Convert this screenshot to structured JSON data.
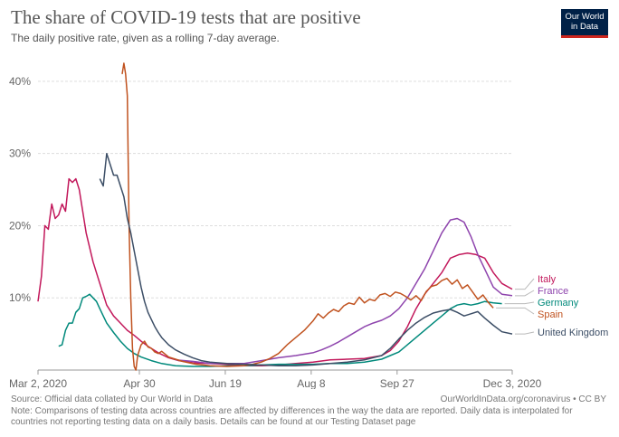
{
  "logo": {
    "line1": "Our World",
    "line2": "in Data"
  },
  "footer": {
    "source": "Source: Official data collated by Our World in Data",
    "url": "OurWorldInData.org/coronavirus • CC BY",
    "note_line1": "Note: Comparisons of testing data across countries are affected by differences in the way the data are reported. Daily data is interpolated for",
    "note_line2": "countries not reporting testing data on a daily basis. Details can be found at our Testing Dataset page"
  },
  "chart_data": {
    "type": "line",
    "title": "The share of COVID-19 tests that are positive",
    "subtitle": "The daily positive rate, given as a rolling 7-day average.",
    "xlabel": "",
    "ylabel": "",
    "x_unit": "days since Mar 2, 2020",
    "xlim": [
      0,
      276
    ],
    "ylim": [
      0,
      45
    ],
    "y_ticks": [
      {
        "value": 10,
        "label": "10%"
      },
      {
        "value": 20,
        "label": "20%"
      },
      {
        "value": 30,
        "label": "30%"
      },
      {
        "value": 40,
        "label": "40%"
      }
    ],
    "x_ticks": [
      {
        "value": 0,
        "label": "Mar 2, 2020"
      },
      {
        "value": 59,
        "label": "Apr 30"
      },
      {
        "value": 109,
        "label": "Jun 19"
      },
      {
        "value": 159,
        "label": "Aug 8"
      },
      {
        "value": 209,
        "label": "Sep 27"
      },
      {
        "value": 276,
        "label": "Dec 3, 2020"
      }
    ],
    "grid": true,
    "legend": "right",
    "series": [
      {
        "name": "Italy",
        "color": "#c2185b",
        "points": [
          [
            0,
            9.5
          ],
          [
            2,
            13
          ],
          [
            4,
            20
          ],
          [
            6,
            19.5
          ],
          [
            8,
            23
          ],
          [
            10,
            21
          ],
          [
            12,
            21.5
          ],
          [
            14,
            23
          ],
          [
            16,
            22
          ],
          [
            18,
            26.5
          ],
          [
            20,
            26
          ],
          [
            22,
            26.5
          ],
          [
            24,
            25
          ],
          [
            26,
            22
          ],
          [
            28,
            19
          ],
          [
            32,
            15
          ],
          [
            36,
            12
          ],
          [
            40,
            9
          ],
          [
            44,
            7.5
          ],
          [
            48,
            6.5
          ],
          [
            52,
            5.5
          ],
          [
            56,
            4.8
          ],
          [
            60,
            4
          ],
          [
            64,
            3.3
          ],
          [
            70,
            2.4
          ],
          [
            76,
            1.7
          ],
          [
            82,
            1.3
          ],
          [
            90,
            1
          ],
          [
            100,
            0.9
          ],
          [
            110,
            0.8
          ],
          [
            120,
            0.6
          ],
          [
            130,
            0.6
          ],
          [
            140,
            0.7
          ],
          [
            150,
            0.9
          ],
          [
            160,
            1.1
          ],
          [
            170,
            1.4
          ],
          [
            180,
            1.5
          ],
          [
            190,
            1.6
          ],
          [
            200,
            2
          ],
          [
            205,
            2.7
          ],
          [
            210,
            4
          ],
          [
            215,
            6
          ],
          [
            220,
            8.5
          ],
          [
            225,
            10.5
          ],
          [
            230,
            12
          ],
          [
            235,
            13.5
          ],
          [
            240,
            15.5
          ],
          [
            245,
            16
          ],
          [
            250,
            16.2
          ],
          [
            255,
            16
          ],
          [
            260,
            15.5
          ],
          [
            265,
            13.5
          ],
          [
            270,
            12
          ],
          [
            276,
            11.2
          ]
        ]
      },
      {
        "name": "France",
        "color": "#8e44ad",
        "points": [
          [
            80,
            1.4
          ],
          [
            90,
            1.2
          ],
          [
            100,
            0.9
          ],
          [
            110,
            0.9
          ],
          [
            120,
            0.9
          ],
          [
            130,
            1.3
          ],
          [
            140,
            1.7
          ],
          [
            150,
            2
          ],
          [
            160,
            2.4
          ],
          [
            165,
            2.8
          ],
          [
            170,
            3.3
          ],
          [
            175,
            3.9
          ],
          [
            180,
            4.6
          ],
          [
            185,
            5.3
          ],
          [
            190,
            6
          ],
          [
            195,
            6.5
          ],
          [
            200,
            6.9
          ],
          [
            205,
            7.5
          ],
          [
            210,
            8.5
          ],
          [
            215,
            10
          ],
          [
            220,
            12
          ],
          [
            225,
            14
          ],
          [
            230,
            16.5
          ],
          [
            235,
            19
          ],
          [
            240,
            20.8
          ],
          [
            244,
            21
          ],
          [
            248,
            20.5
          ],
          [
            252,
            18.5
          ],
          [
            256,
            16
          ],
          [
            260,
            14
          ],
          [
            265,
            11.5
          ],
          [
            270,
            10.5
          ],
          [
            276,
            10.3
          ]
        ]
      },
      {
        "name": "Germany",
        "color": "#00897b",
        "points": [
          [
            12,
            3.3
          ],
          [
            14,
            3.5
          ],
          [
            16,
            5.5
          ],
          [
            18,
            6.5
          ],
          [
            20,
            6.5
          ],
          [
            22,
            8
          ],
          [
            24,
            8.5
          ],
          [
            26,
            10
          ],
          [
            28,
            10.2
          ],
          [
            30,
            10.5
          ],
          [
            32,
            10
          ],
          [
            34,
            9.5
          ],
          [
            36,
            8.5
          ],
          [
            38,
            7.5
          ],
          [
            40,
            6.5
          ],
          [
            44,
            5.2
          ],
          [
            48,
            4
          ],
          [
            52,
            3
          ],
          [
            56,
            2.3
          ],
          [
            60,
            1.8
          ],
          [
            66,
            1.3
          ],
          [
            72,
            0.9
          ],
          [
            80,
            0.6
          ],
          [
            90,
            0.5
          ],
          [
            100,
            0.5
          ],
          [
            110,
            0.6
          ],
          [
            120,
            0.6
          ],
          [
            130,
            0.7
          ],
          [
            140,
            0.8
          ],
          [
            150,
            0.8
          ],
          [
            160,
            0.8
          ],
          [
            170,
            0.9
          ],
          [
            180,
            0.9
          ],
          [
            190,
            1.1
          ],
          [
            200,
            1.5
          ],
          [
            205,
            2
          ],
          [
            210,
            2.5
          ],
          [
            215,
            3.5
          ],
          [
            220,
            4.5
          ],
          [
            225,
            5.5
          ],
          [
            230,
            6.5
          ],
          [
            235,
            7.5
          ],
          [
            240,
            8.5
          ],
          [
            244,
            9
          ],
          [
            248,
            9.2
          ],
          [
            252,
            9
          ],
          [
            256,
            9.2
          ],
          [
            260,
            9.5
          ],
          [
            265,
            9.3
          ],
          [
            270,
            9.2
          ]
        ]
      },
      {
        "name": "Spain",
        "color": "#c0521f",
        "points": [
          [
            49,
            41
          ],
          [
            50,
            42.5
          ],
          [
            51,
            41
          ],
          [
            52,
            38
          ],
          [
            53,
            20
          ],
          [
            54,
            10
          ],
          [
            55,
            3
          ],
          [
            56,
            0.5
          ],
          [
            57,
            0
          ],
          [
            58,
            2
          ],
          [
            60,
            3.5
          ],
          [
            62,
            4
          ],
          [
            64,
            3.2
          ],
          [
            66,
            3
          ],
          [
            68,
            2.5
          ],
          [
            70,
            2.3
          ],
          [
            72,
            2.6
          ],
          [
            74,
            2.2
          ],
          [
            76,
            1.8
          ],
          [
            80,
            1.5
          ],
          [
            84,
            1.2
          ],
          [
            88,
            1
          ],
          [
            92,
            0.8
          ],
          [
            96,
            0.7
          ],
          [
            100,
            0.6
          ],
          [
            110,
            0.5
          ],
          [
            120,
            0.6
          ],
          [
            125,
            0.8
          ],
          [
            130,
            1.1
          ],
          [
            135,
            1.6
          ],
          [
            140,
            2.3
          ],
          [
            145,
            3.5
          ],
          [
            150,
            4.5
          ],
          [
            155,
            5.5
          ],
          [
            160,
            6.8
          ],
          [
            163,
            7.8
          ],
          [
            166,
            7.2
          ],
          [
            169,
            7.9
          ],
          [
            172,
            8.4
          ],
          [
            175,
            8.1
          ],
          [
            178,
            8.9
          ],
          [
            181,
            9.3
          ],
          [
            184,
            9.1
          ],
          [
            187,
            10.1
          ],
          [
            190,
            9.3
          ],
          [
            193,
            9.8
          ],
          [
            196,
            9.6
          ],
          [
            199,
            10.4
          ],
          [
            202,
            10.6
          ],
          [
            205,
            10.2
          ],
          [
            208,
            10.8
          ],
          [
            211,
            10.6
          ],
          [
            214,
            10.2
          ],
          [
            217,
            9.7
          ],
          [
            220,
            10.3
          ],
          [
            223,
            9.6
          ],
          [
            226,
            10.9
          ],
          [
            229,
            11.6
          ],
          [
            232,
            11.8
          ],
          [
            235,
            12.4
          ],
          [
            238,
            12.7
          ],
          [
            241,
            11.9
          ],
          [
            244,
            12.5
          ],
          [
            247,
            11.3
          ],
          [
            250,
            11.8
          ],
          [
            253,
            10.8
          ],
          [
            256,
            9.8
          ],
          [
            259,
            10.4
          ],
          [
            262,
            9.4
          ],
          [
            265,
            8.6
          ]
        ]
      },
      {
        "name": "United Kingdom",
        "color": "#3c4e66",
        "points": [
          [
            36,
            26.5
          ],
          [
            38,
            25.5
          ],
          [
            40,
            30
          ],
          [
            42,
            28.5
          ],
          [
            44,
            27
          ],
          [
            46,
            27
          ],
          [
            48,
            25.5
          ],
          [
            50,
            24
          ],
          [
            52,
            21
          ],
          [
            54,
            19
          ],
          [
            56,
            16.5
          ],
          [
            58,
            14
          ],
          [
            60,
            11.5
          ],
          [
            62,
            9.5
          ],
          [
            64,
            8
          ],
          [
            66,
            7
          ],
          [
            68,
            6
          ],
          [
            70,
            5.2
          ],
          [
            72,
            4.5
          ],
          [
            76,
            3.5
          ],
          [
            80,
            2.8
          ],
          [
            85,
            2.2
          ],
          [
            90,
            1.7
          ],
          [
            95,
            1.3
          ],
          [
            100,
            1.1
          ],
          [
            110,
            0.9
          ],
          [
            120,
            0.8
          ],
          [
            130,
            0.7
          ],
          [
            140,
            0.6
          ],
          [
            150,
            0.6
          ],
          [
            160,
            0.7
          ],
          [
            170,
            0.9
          ],
          [
            180,
            1.1
          ],
          [
            190,
            1.4
          ],
          [
            200,
            2
          ],
          [
            205,
            3
          ],
          [
            210,
            4.3
          ],
          [
            215,
            5.5
          ],
          [
            220,
            6.5
          ],
          [
            225,
            7.3
          ],
          [
            230,
            7.9
          ],
          [
            235,
            8.2
          ],
          [
            240,
            8.4
          ],
          [
            244,
            8
          ],
          [
            248,
            7.5
          ],
          [
            252,
            7.8
          ],
          [
            256,
            8.1
          ],
          [
            260,
            7.2
          ],
          [
            265,
            6.2
          ],
          [
            270,
            5.3
          ],
          [
            276,
            5
          ]
        ]
      }
    ]
  }
}
